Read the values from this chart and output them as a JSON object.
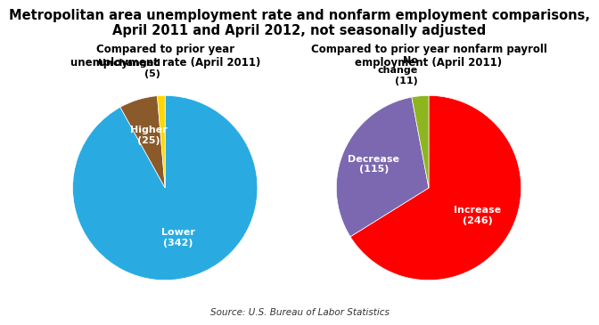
{
  "title": "Metropolitan area unemployment rate and nonfarm employment comparisons,\nApril 2011 and April 2012, not seasonally adjusted",
  "title_fontsize": 10.5,
  "source": "Source: U.S. Bureau of Labor Statistics",
  "left_chart": {
    "title": "Compared to prior year\nunemployment rate (April 2011)",
    "values": [
      342,
      25,
      5
    ],
    "colors": [
      "#29ABE2",
      "#8B5A2B",
      "#FFD700"
    ],
    "startangle": 90
  },
  "right_chart": {
    "title": "Compared to prior year nonfarm payroll\nemployment (April 2011)",
    "values": [
      246,
      115,
      11
    ],
    "colors": [
      "#FF0000",
      "#7B68B0",
      "#8DB520"
    ],
    "startangle": 90
  },
  "background_color": "#FFFFFF"
}
